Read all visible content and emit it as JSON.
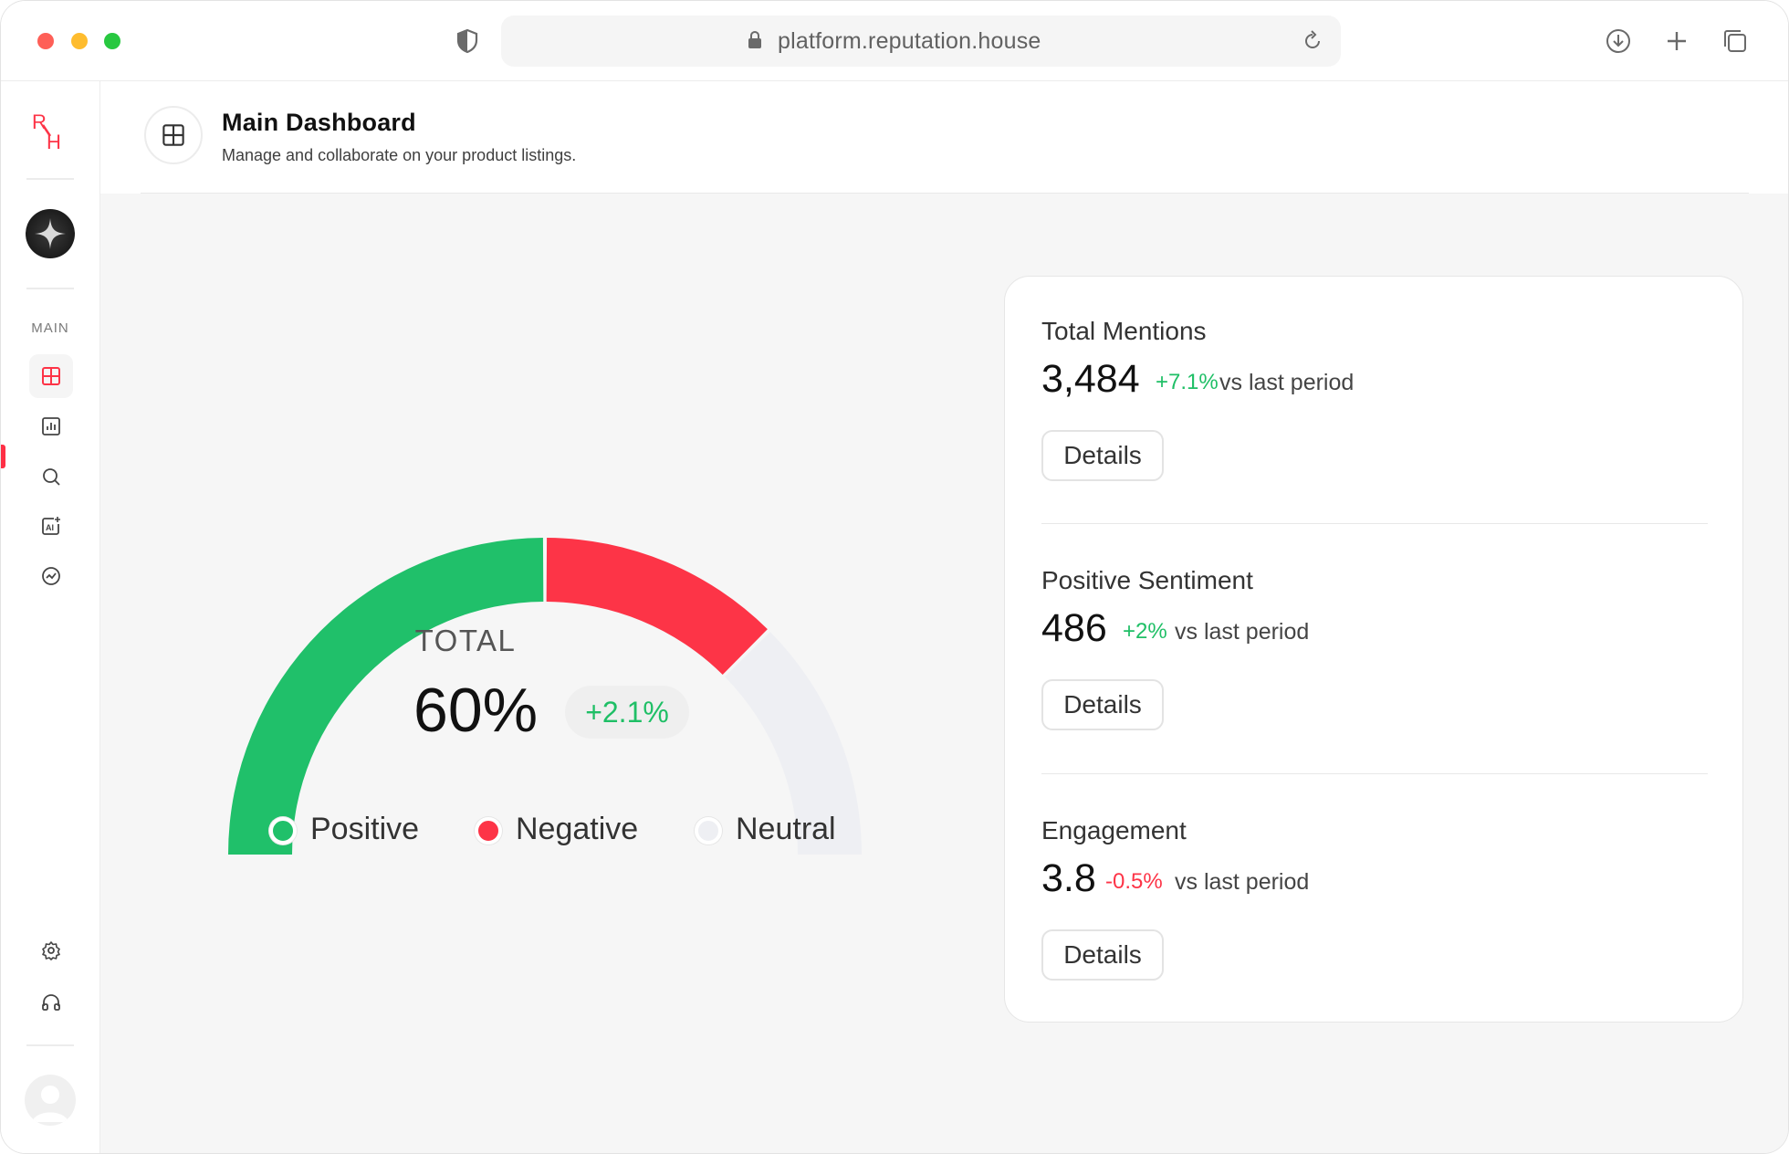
{
  "browser": {
    "url": "platform.reputation.house"
  },
  "sidebar": {
    "logo_text": "RH",
    "section_label": "MAIN",
    "items": [
      {
        "icon": "dashboard-grid-icon",
        "active": true
      },
      {
        "icon": "bar-chart-icon"
      },
      {
        "icon": "search-icon"
      },
      {
        "icon": "ai-image-icon"
      },
      {
        "icon": "trend-icon"
      }
    ],
    "bottom_items": [
      {
        "icon": "gear-icon"
      },
      {
        "icon": "headphones-icon"
      }
    ]
  },
  "header": {
    "title": "Main Dashboard",
    "subtitle": "Manage and collaborate on your product listings."
  },
  "gauge": {
    "label": "TOTAL",
    "value": "60%",
    "change": "+2.1%",
    "segments": [
      {
        "name": "Positive",
        "fraction": 0.5,
        "color": "#20c06a"
      },
      {
        "name": "Negative",
        "fraction": 0.25,
        "color": "#fd3447"
      },
      {
        "name": "Neutral",
        "fraction": 0.25,
        "color": "#eeeff3"
      }
    ],
    "legend": [
      "Positive",
      "Negative",
      "Neutral"
    ]
  },
  "stats": [
    {
      "title": "Total Mentions",
      "value": "3,484",
      "change": "+7.1%",
      "change_color": "#1fbf66",
      "suffix": "vs last period",
      "button": "Details"
    },
    {
      "title": "Positive Sentiment",
      "value": "486",
      "change": "+2%",
      "change_color": "#1fbf66",
      "suffix": "vs last period",
      "button": "Details"
    },
    {
      "title": "Engagement",
      "value": "3.8",
      "change": "-0.5%",
      "change_color": "#fd3447",
      "suffix": "vs last period",
      "button": "Details"
    }
  ],
  "colors": {
    "accent": "#fd3447",
    "positive": "#20c06a",
    "negative": "#fd3447",
    "neutral": "#eeeff3"
  }
}
